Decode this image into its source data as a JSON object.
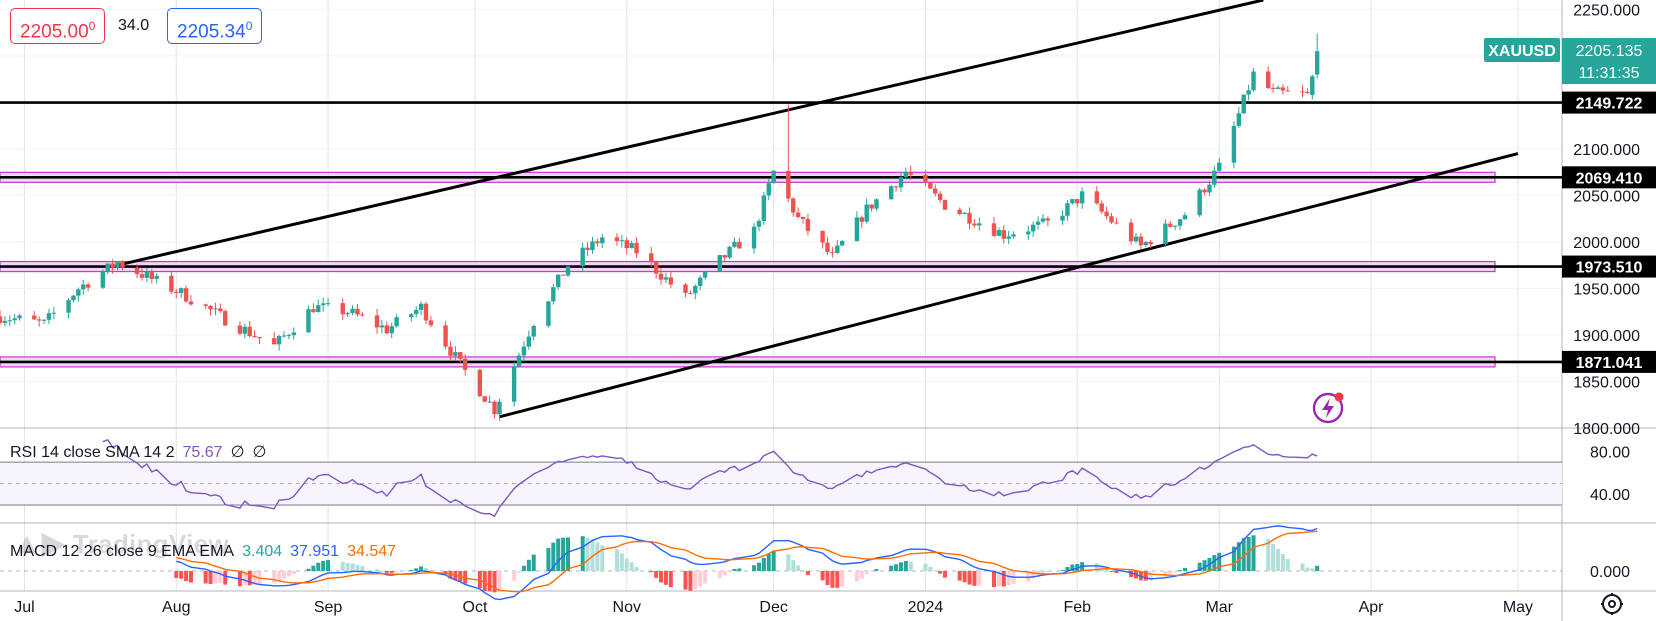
{
  "symbol": "XAUUSD",
  "quote": {
    "bid": "2205.00",
    "bid_sup": "0",
    "spread": "34.0",
    "ask": "2205.34",
    "ask_sup": "0",
    "last": "2205.135",
    "countdown": "11:31:35"
  },
  "colors": {
    "up": "#26a69a",
    "down": "#ef5350",
    "bid": "#f23645",
    "ask": "#2962ff",
    "zone_fill": "#f3d6f7",
    "zone_border": "#c936d6",
    "rsi": "#7e57c2",
    "macd": "#2962ff",
    "signal": "#ff6d00",
    "label_bg": "#26a69a"
  },
  "price_axis_ticks": [
    "2250.000",
    "2100.000",
    "2050.000",
    "2000.000",
    "1950.000",
    "1900.000",
    "1850.000",
    "1800.000"
  ],
  "rsi_axis_ticks": [
    "80.00",
    "40.00"
  ],
  "macd_axis_ticks": [
    "0.000"
  ],
  "time_labels": [
    "Jul",
    "Aug",
    "Sep",
    "Oct",
    "Nov",
    "Dec",
    "2024",
    "Feb",
    "Mar",
    "Apr",
    "May"
  ],
  "levels": [
    {
      "price": 2149.722,
      "label": "2149.722",
      "zone": false
    },
    {
      "price": 2069.41,
      "label": "2069.410",
      "zone": true
    },
    {
      "price": 1973.51,
      "label": "1973.510",
      "zone": true
    },
    {
      "price": 1871.041,
      "label": "1871.041",
      "zone": true
    }
  ],
  "rsi": {
    "title": "RSI 14 close SMA 14 2",
    "value": "75.67",
    "extra1": "∅",
    "extra2": "∅",
    "band_upper": 70,
    "band_lower": 30
  },
  "macd": {
    "title": "MACD 12 26 close 9 EMA EMA",
    "hist": "3.404",
    "macd": "37.951",
    "signal": "34.547"
  },
  "watermark": "TradingView",
  "chart_data": {
    "type": "candlestick",
    "symbol": "XAUUSD",
    "ylim": [
      1800,
      2260
    ],
    "x": [
      "2023-06-26",
      "2024-05-10"
    ],
    "waypoints": [
      [
        "2023-06-26",
        1920
      ],
      [
        "2023-07-05",
        1912
      ],
      [
        "2023-07-12",
        1950
      ],
      [
        "2023-07-20",
        1978
      ],
      [
        "2023-07-27",
        1960
      ],
      [
        "2023-08-02",
        1945
      ],
      [
        "2023-08-10",
        1920
      ],
      [
        "2023-08-21",
        1888
      ],
      [
        "2023-08-29",
        1930
      ],
      [
        "2023-09-05",
        1925
      ],
      [
        "2023-09-13",
        1906
      ],
      [
        "2023-09-20",
        1930
      ],
      [
        "2023-09-28",
        1868
      ],
      [
        "2023-10-05",
        1820
      ],
      [
        "2023-10-13",
        1915
      ],
      [
        "2023-10-20",
        1975
      ],
      [
        "2023-10-27",
        2005
      ],
      [
        "2023-11-03",
        1990
      ],
      [
        "2023-11-13",
        1940
      ],
      [
        "2023-11-20",
        1980
      ],
      [
        "2023-11-27",
        2012
      ],
      [
        "2023-12-01",
        2075
      ],
      [
        "2023-12-06",
        2025
      ],
      [
        "2023-12-13",
        1983
      ],
      [
        "2023-12-20",
        2035
      ],
      [
        "2023-12-28",
        2075
      ],
      [
        "2024-01-05",
        2040
      ],
      [
        "2024-01-17",
        2008
      ],
      [
        "2024-01-26",
        2020
      ],
      [
        "2024-02-02",
        2050
      ],
      [
        "2024-02-14",
        1995
      ],
      [
        "2024-02-23",
        2030
      ],
      [
        "2024-03-01",
        2080
      ],
      [
        "2024-03-08",
        2180
      ],
      [
        "2024-03-12",
        2160
      ],
      [
        "2024-03-19",
        2158
      ],
      [
        "2024-03-22",
        2205
      ]
    ],
    "candles_tail": [
      {
        "date": "2024-03-20",
        "open": 2158,
        "high": 2180,
        "low": 2153,
        "close": 2178
      },
      {
        "date": "2024-03-21",
        "open": 2180,
        "high": 2224,
        "low": 2176,
        "close": 2205
      }
    ],
    "trendlines": [
      {
        "from": [
          "2023-07-20",
          1975
        ],
        "to": [
          "2024-03-10",
          2260
        ]
      },
      {
        "from": [
          "2023-10-06",
          1812
        ],
        "to": [
          "2024-05-01",
          2095
        ]
      }
    ],
    "horizontal_levels": [
      2149.722,
      2069.41,
      1973.51,
      1871.041
    ],
    "last_price": 2205.135,
    "rsi_last": 75.67,
    "rsi_range": [
      15,
      100
    ],
    "macd_last": {
      "hist": 3.404,
      "macd": 37.951,
      "signal": 34.547
    }
  }
}
